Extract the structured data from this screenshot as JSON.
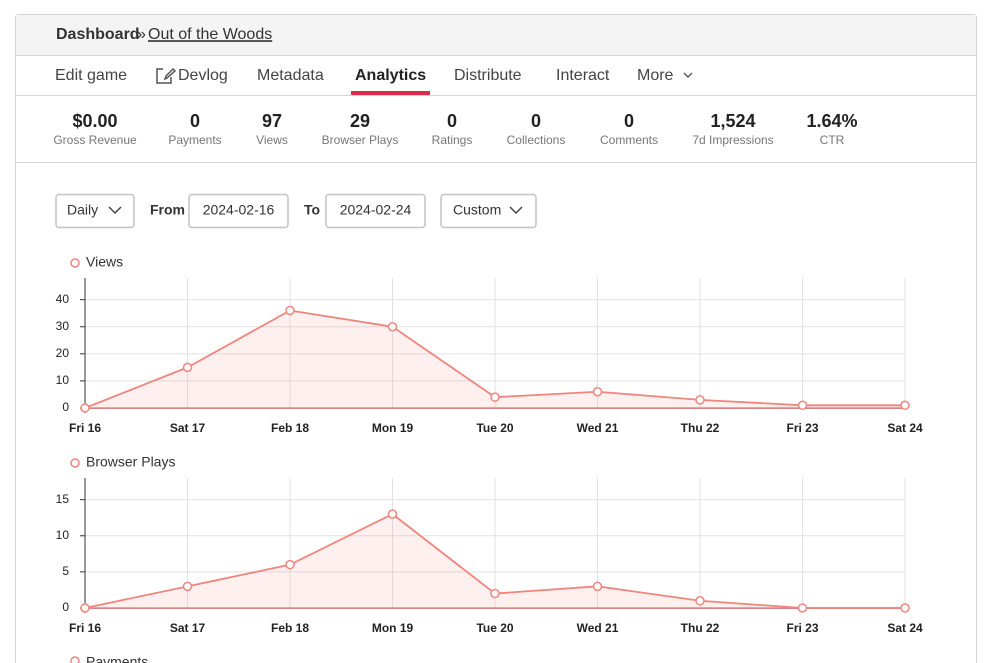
{
  "breadcrumb": {
    "root": "Dashboard",
    "separator": "»",
    "game": "Out of the Woods"
  },
  "tabs": [
    "Edit game",
    "Devlog",
    "Metadata",
    "Analytics",
    "Distribute",
    "Interact",
    "More"
  ],
  "active_tab": "Analytics",
  "stats": [
    {
      "value": "$0.00",
      "label": "Gross Revenue"
    },
    {
      "value": "0",
      "label": "Payments"
    },
    {
      "value": "97",
      "label": "Views"
    },
    {
      "value": "29",
      "label": "Browser Plays"
    },
    {
      "value": "0",
      "label": "Ratings"
    },
    {
      "value": "0",
      "label": "Collections"
    },
    {
      "value": "0",
      "label": "Comments"
    },
    {
      "value": "1,524",
      "label": "7d Impressions"
    },
    {
      "value": "1.64%",
      "label": "CTR"
    }
  ],
  "controls": {
    "interval": "Daily",
    "from_label": "From",
    "from": "2024-02-16",
    "to_label": "To",
    "to": "2024-02-24",
    "range": "Custom"
  },
  "charts": [
    {
      "type": "line",
      "categories": [
        "Fri 16",
        "Sat 17",
        "Feb 18",
        "Mon 19",
        "Tue 20",
        "Wed 21",
        "Thu 22",
        "Fri 23",
        "Sat 24"
      ],
      "series": [
        {
          "name": "Views",
          "color": "#f0857d",
          "values": [
            0,
            15,
            36,
            30,
            4,
            6,
            3,
            1,
            1
          ]
        }
      ],
      "ylim": [
        0,
        48
      ],
      "yticks": [
        0,
        10,
        20,
        30,
        40
      ],
      "grid": true
    },
    {
      "type": "line",
      "categories": [
        "Fri 16",
        "Sat 17",
        "Feb 18",
        "Mon 19",
        "Tue 20",
        "Wed 21",
        "Thu 22",
        "Fri 23",
        "Sat 24"
      ],
      "series": [
        {
          "name": "Browser Plays",
          "color": "#f0857d",
          "values": [
            0,
            3,
            6,
            13,
            2,
            3,
            1,
            0,
            0
          ]
        }
      ],
      "ylim": [
        0,
        18
      ],
      "yticks": [
        0,
        5,
        10,
        15
      ],
      "grid": true
    }
  ],
  "next_section": "Payments"
}
